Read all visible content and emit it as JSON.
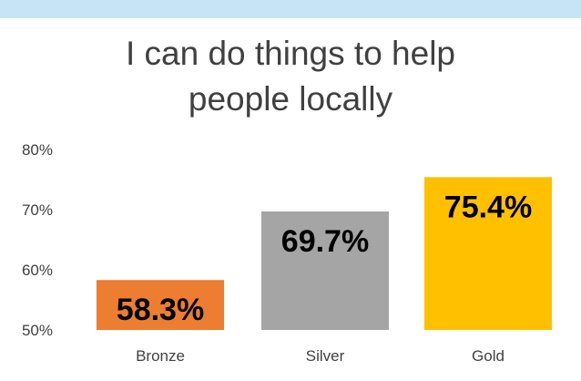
{
  "chart_data": {
    "type": "bar",
    "title_lines": [
      "I can do things to help",
      "people locally"
    ],
    "categories": [
      "Bronze",
      "Silver",
      "Gold"
    ],
    "values": [
      58.3,
      69.7,
      75.4
    ],
    "data_labels": [
      "58.3%",
      "69.7%",
      "75.4%"
    ],
    "colors": [
      "#ed7d31",
      "#a5a5a5",
      "#ffc000"
    ],
    "ylim": [
      50,
      80
    ],
    "yticks": [
      50,
      60,
      70,
      80
    ],
    "ytick_labels": [
      "50%",
      "60%",
      "70%",
      "80%"
    ],
    "grid": false,
    "legend": "none"
  }
}
